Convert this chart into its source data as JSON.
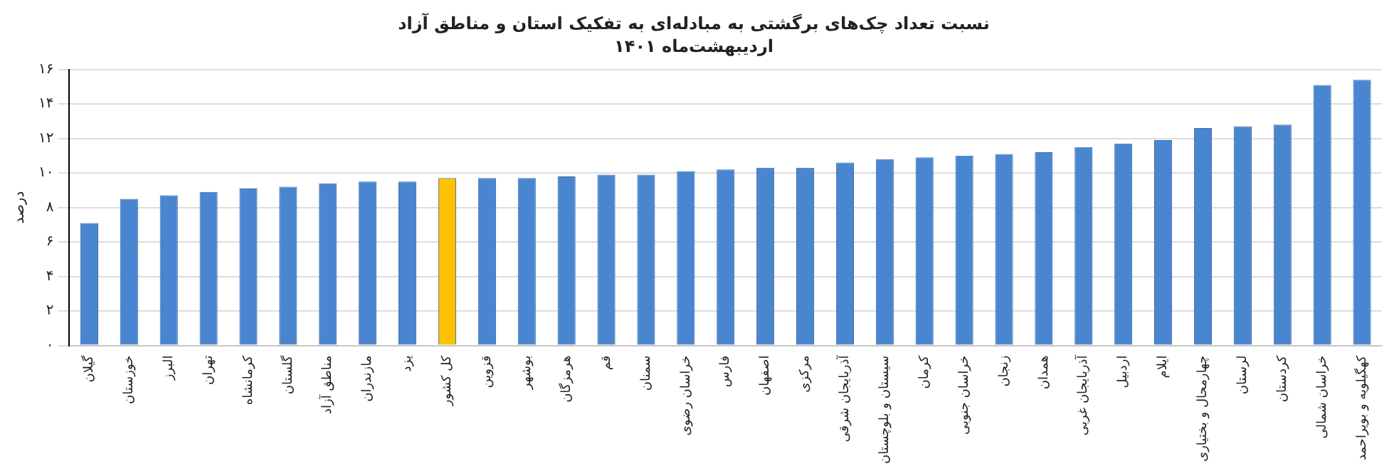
{
  "chart_data": {
    "type": "bar",
    "title": "نسبت تعداد چک‌های برگشتی به مبادله‌ای به تفکیک استان و مناطق آزاد",
    "subtitle": "اردیبهشت‌ماه ۱۴۰۱",
    "ylabel": "درصد",
    "categories": [
      "گیلان",
      "خوزستان",
      "البرز",
      "تهران",
      "کرمانشاه",
      "گلستان",
      "مناطق آزاد",
      "مازندران",
      "یزد",
      "کل کشور",
      "قزوین",
      "بوشهر",
      "هرمزگان",
      "قم",
      "سمنان",
      "خراسان رضوی",
      "فارس",
      "اصفهان",
      "مرکزی",
      "آذربایجان شرقی",
      "سیستان و بلوچستان",
      "کرمان",
      "خراسان جنوبی",
      "زنجان",
      "همدان",
      "آذربایجان غربی",
      "اردبیل",
      "ایلام",
      "چهارمحال و بختیاری",
      "لرستان",
      "کردستان",
      "خراسان شمالی",
      "کهگیلویه و بویراحمد"
    ],
    "values": [
      7.1,
      8.5,
      8.7,
      8.9,
      9.1,
      9.2,
      9.4,
      9.5,
      9.5,
      9.7,
      9.7,
      9.7,
      9.8,
      9.9,
      9.9,
      10.1,
      10.2,
      10.3,
      10.3,
      10.6,
      10.8,
      10.9,
      11.0,
      11.1,
      11.2,
      11.5,
      11.7,
      11.9,
      12.6,
      12.7,
      12.8,
      15.1,
      15.4
    ],
    "colors": [
      "#4a86d0",
      "#4a86d0",
      "#4a86d0",
      "#4a86d0",
      "#4a86d0",
      "#4a86d0",
      "#4a86d0",
      "#4a86d0",
      "#4a86d0",
      "#ffc000",
      "#4a86d0",
      "#4a86d0",
      "#4a86d0",
      "#4a86d0",
      "#4a86d0",
      "#4a86d0",
      "#4a86d0",
      "#4a86d0",
      "#4a86d0",
      "#4a86d0",
      "#4a86d0",
      "#4a86d0",
      "#4a86d0",
      "#4a86d0",
      "#4a86d0",
      "#4a86d0",
      "#4a86d0",
      "#4a86d0",
      "#4a86d0",
      "#4a86d0",
      "#4a86d0",
      "#4a86d0",
      "#4a86d0"
    ],
    "ylim": [
      0,
      16
    ],
    "yticks": [
      {
        "value": 0,
        "label": "۰"
      },
      {
        "value": 2,
        "label": "۲"
      },
      {
        "value": 4,
        "label": "۴"
      },
      {
        "value": 6,
        "label": "۶"
      },
      {
        "value": 8,
        "label": "۸"
      },
      {
        "value": 10,
        "label": "۱۰"
      },
      {
        "value": 12,
        "label": "۱۲"
      },
      {
        "value": 14,
        "label": "۱۴"
      },
      {
        "value": 16,
        "label": "۱۶"
      }
    ],
    "grid": "y",
    "legend": false
  }
}
